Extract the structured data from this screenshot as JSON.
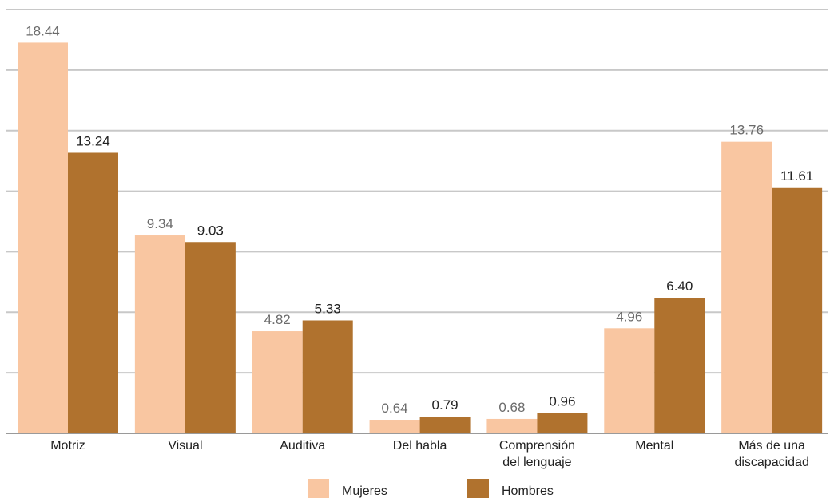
{
  "chart_data": {
    "type": "bar",
    "categories": [
      [
        "Motriz"
      ],
      [
        "Visual"
      ],
      [
        "Auditiva"
      ],
      [
        "Del habla"
      ],
      [
        "Comprensión",
        "del lenguaje"
      ],
      [
        "Mental"
      ],
      [
        "Más de una",
        "discapacidad"
      ]
    ],
    "series": [
      {
        "name": "Mujeres",
        "values": [
          18.44,
          9.34,
          4.82,
          0.64,
          0.68,
          4.96,
          13.76
        ],
        "labels": [
          "18.44",
          "9.34",
          "4.82",
          "0.64",
          "0.68",
          "4.96",
          "13.76"
        ],
        "color": "#f9c6a1"
      },
      {
        "name": "Hombres",
        "values": [
          13.24,
          9.03,
          5.33,
          0.79,
          0.96,
          6.4,
          11.61
        ],
        "labels": [
          "13.24",
          "9.03",
          "5.33",
          "0.79",
          "0.96",
          "6.40",
          "11.61"
        ],
        "color": "#b0722e"
      }
    ],
    "ylim": [
      0,
      20
    ],
    "grid": true,
    "legend_position": "bottom"
  }
}
